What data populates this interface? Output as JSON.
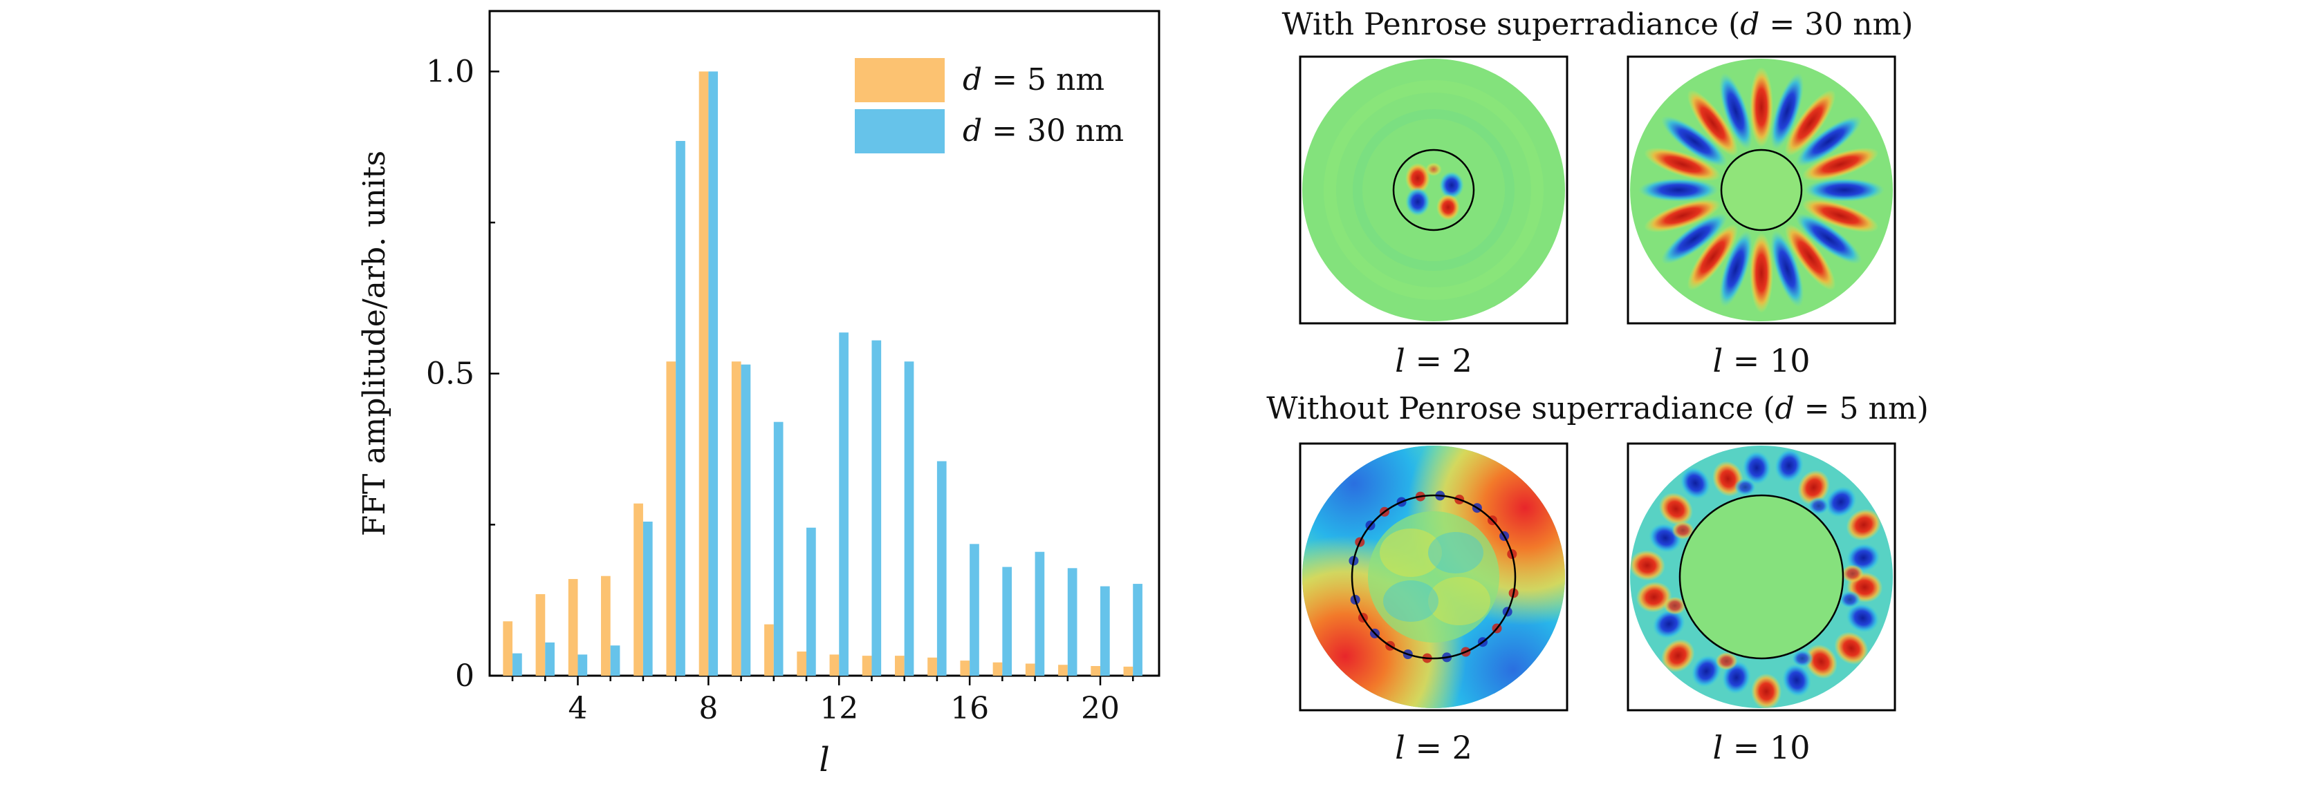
{
  "chart_data": {
    "type": "bar",
    "xlabel": "l",
    "ylabel": "FFT amplitude/arb. units",
    "xlim": [
      1.3,
      21.8
    ],
    "ylim": [
      0,
      1.1
    ],
    "xticks": [
      4,
      8,
      12,
      16,
      20
    ],
    "yticks": [
      0,
      0.5,
      1.0
    ],
    "ytick_labels": [
      "0",
      "0.5",
      "1.0"
    ],
    "legend_position": "top-right",
    "x": [
      2,
      3,
      4,
      5,
      6,
      7,
      8,
      9,
      10,
      11,
      12,
      13,
      14,
      15,
      16,
      17,
      18,
      19,
      20,
      21
    ],
    "series": [
      {
        "name_prefix": "d",
        "name_suffix": " = 5 nm",
        "color": "#fcc271",
        "values": [
          0.09,
          0.135,
          0.16,
          0.165,
          0.285,
          0.52,
          1.0,
          0.52,
          0.085,
          0.04,
          0.035,
          0.033,
          0.033,
          0.03,
          0.025,
          0.022,
          0.02,
          0.018,
          0.016,
          0.015
        ]
      },
      {
        "name_prefix": "d",
        "name_suffix": " = 30 nm",
        "color": "#66c3ea",
        "values": [
          0.037,
          0.055,
          0.035,
          0.05,
          0.255,
          0.885,
          1.0,
          0.515,
          0.42,
          0.245,
          0.568,
          0.555,
          0.52,
          0.355,
          0.218,
          0.18,
          0.205,
          0.178,
          0.148,
          0.152
        ]
      }
    ]
  },
  "panels": {
    "top": {
      "title_prefix": "With Penrose superradiance (",
      "title_var": "d",
      "title_suffix": " = 30 nm)",
      "left_label_var": "l",
      "left_label_rest": " = 2",
      "right_label_var": "l",
      "right_label_rest": " = 10"
    },
    "bottom": {
      "title_prefix": "Without Penrose superradiance (",
      "title_var": "d",
      "title_suffix": " = 5 nm)",
      "left_label_var": "l",
      "left_label_rest": " = 2",
      "right_label_var": "l",
      "right_label_rest": " = 10"
    }
  },
  "colors": {
    "field_background": "#7fe27a",
    "positive": "#d9241b",
    "negative": "#1f35c8",
    "transition_warm": "#f4d13a",
    "transition_cool": "#33c3df"
  }
}
